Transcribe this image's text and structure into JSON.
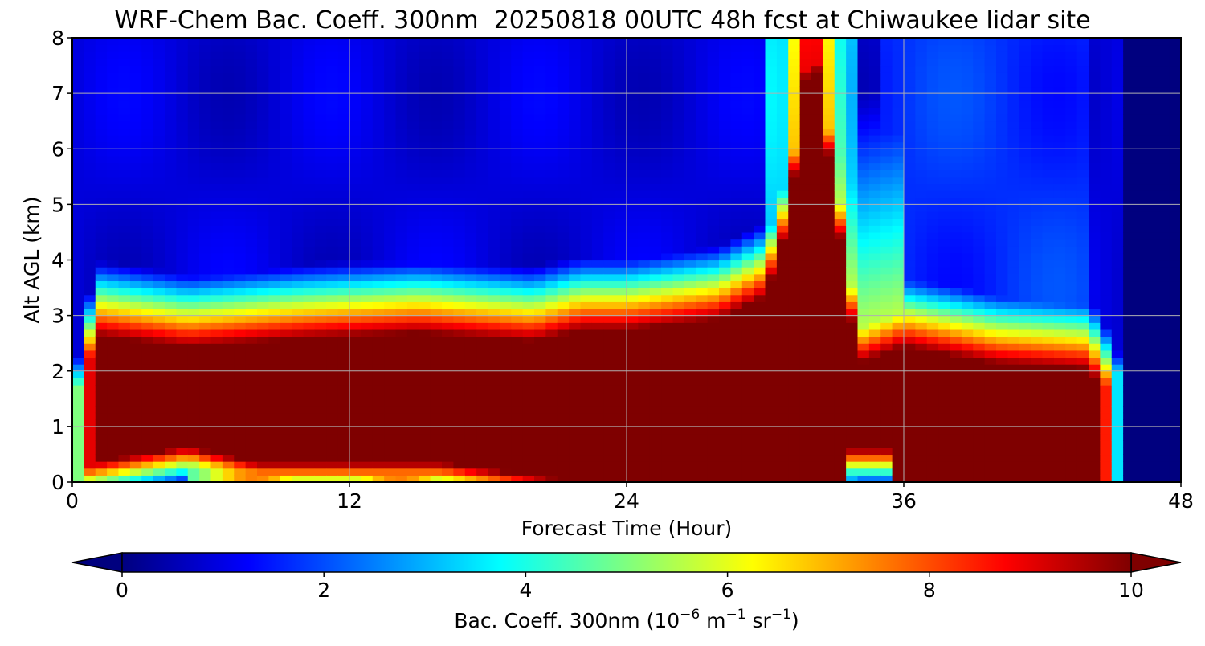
{
  "chart_data": {
    "type": "heatmap",
    "title": "WRF-Chem Bac. Coeff. 300nm  20250818 00UTC 48h fcst at Chiwaukee lidar site",
    "xlabel": "Forecast Time (Hour)",
    "ylabel": "Alt AGL (km)",
    "x_ticks": [
      "0",
      "12",
      "24",
      "36",
      "48"
    ],
    "y_ticks": [
      "0",
      "1",
      "2",
      "3",
      "4",
      "5",
      "6",
      "7",
      "8"
    ],
    "xlim": [
      0,
      48
    ],
    "ylim": [
      0,
      8
    ],
    "grid": true,
    "colormap": "jet",
    "colorbar": {
      "label_main": "Bac. Coeff. 300nm  (10",
      "label_exp1": "−6",
      "label_mid": " m",
      "label_exp2": "−1",
      "label_mid2": " sr",
      "label_exp3": "−1",
      "label_end": ")",
      "ticks": [
        "0",
        "2",
        "4",
        "6",
        "8",
        "10"
      ],
      "range": [
        0,
        10
      ],
      "extend": "both",
      "orientation": "horizontal",
      "placement": "bottom"
    },
    "color_stops": [
      "#00007f",
      "#0000ff",
      "#007fff",
      "#00ffff",
      "#7fff7f",
      "#ffff00",
      "#ff7f00",
      "#ff0000",
      "#7f0000"
    ],
    "time_hours": [
      0,
      0.5,
      1,
      3,
      5,
      6,
      8,
      10,
      12,
      14,
      16,
      18,
      20,
      22,
      23,
      24,
      26,
      28,
      30,
      31,
      32,
      33,
      34,
      35,
      36,
      38,
      40,
      42,
      44,
      45,
      46,
      47,
      48
    ],
    "altitude_km": [
      0,
      0.25,
      0.5,
      0.75,
      1,
      1.5,
      2,
      2.5,
      3,
      3.5,
      4,
      4.5,
      5,
      6,
      7,
      8
    ]
  }
}
